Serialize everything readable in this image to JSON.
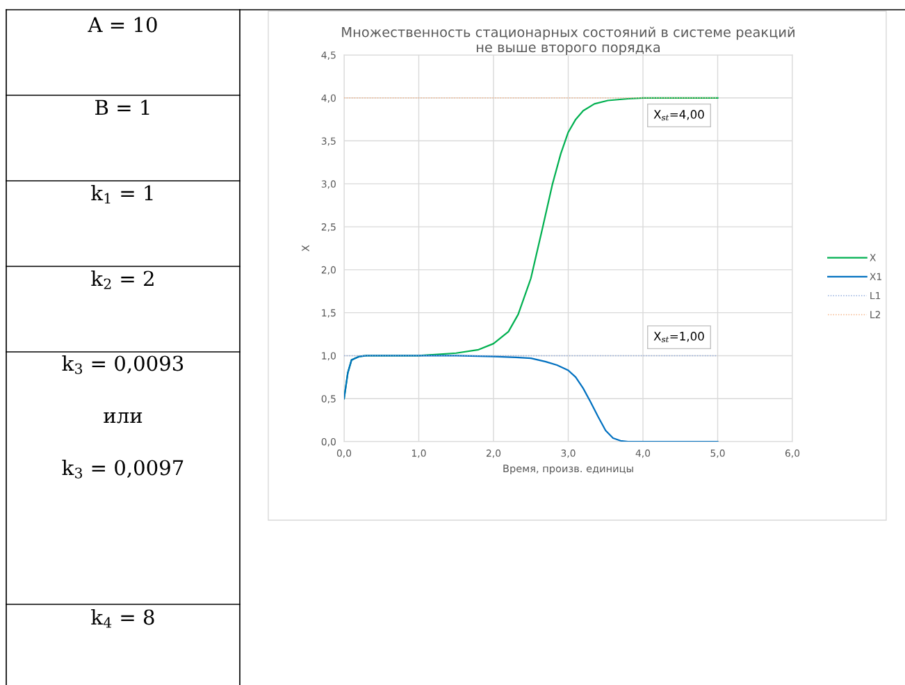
{
  "chart_data": {
    "type": "line",
    "title": "Множественность стационарных состояний в системе реакций\nне выше второго порядка",
    "xlabel": "Время, произв. единицы",
    "ylabel": "X",
    "xlim": [
      0,
      6
    ],
    "xticks": [
      {
        "value": 0,
        "label": "0,0"
      },
      {
        "value": 1,
        "label": "1,0"
      },
      {
        "value": 2,
        "label": "2,0"
      },
      {
        "value": 3,
        "label": "3,0"
      },
      {
        "value": 4,
        "label": "4,0"
      },
      {
        "value": 5,
        "label": "5,0"
      },
      {
        "value": 6,
        "label": "6,0"
      }
    ],
    "ylim": [
      0,
      4.5
    ],
    "yticks": [
      {
        "value": 0,
        "label": "0,0"
      },
      {
        "value": 0.5,
        "label": "0,5"
      },
      {
        "value": 1,
        "label": "1,0"
      },
      {
        "value": 1.5,
        "label": "1,5"
      },
      {
        "value": 2,
        "label": "2,0"
      },
      {
        "value": 2.5,
        "label": "2,5"
      },
      {
        "value": 3,
        "label": "3,0"
      },
      {
        "value": 3.5,
        "label": "3,5"
      },
      {
        "value": 4,
        "label": "4,0"
      },
      {
        "value": 4.5,
        "label": "4,5"
      }
    ],
    "grid": true,
    "legend": "right",
    "marker": "none",
    "series": [
      {
        "name": "X",
        "color": "#00b050",
        "line_style": "solid",
        "x": [
          0,
          0.05,
          0.1,
          0.2,
          0.3,
          0.5,
          1.0,
          1.5,
          1.8,
          2.0,
          2.2,
          2.33,
          2.5,
          2.66,
          2.79,
          2.9,
          3.0,
          3.1,
          3.2,
          3.35,
          3.53,
          3.8,
          4.0,
          4.5,
          5.0
        ],
        "values": [
          0.5,
          0.8,
          0.95,
          0.99,
          1.0,
          1.0,
          1.0,
          1.03,
          1.07,
          1.14,
          1.28,
          1.48,
          1.9,
          2.5,
          3.0,
          3.35,
          3.6,
          3.75,
          3.85,
          3.93,
          3.97,
          3.99,
          4.0,
          4.0,
          4.0
        ]
      },
      {
        "name": "X1",
        "color": "#0070c0",
        "line_style": "solid",
        "x": [
          0,
          0.05,
          0.1,
          0.2,
          0.3,
          0.5,
          1.0,
          1.5,
          2.0,
          2.3,
          2.5,
          2.7,
          2.85,
          3.0,
          3.1,
          3.2,
          3.3,
          3.4,
          3.5,
          3.6,
          3.7,
          3.8,
          4.0,
          4.5,
          5.0
        ],
        "values": [
          0.5,
          0.8,
          0.95,
          0.99,
          1.0,
          1.0,
          1.0,
          1.0,
          0.99,
          0.98,
          0.97,
          0.93,
          0.89,
          0.83,
          0.75,
          0.62,
          0.46,
          0.29,
          0.13,
          0.04,
          0.01,
          0.0,
          0.0,
          0.0,
          0.0
        ]
      },
      {
        "name": "L1",
        "color": "#8faadc",
        "line_style": "dotted",
        "x": [
          0,
          5.0
        ],
        "values": [
          1.0,
          1.0
        ]
      },
      {
        "name": "L2",
        "color": "#f4b183",
        "line_style": "dotted",
        "x": [
          0,
          5.0
        ],
        "values": [
          4.0,
          4.0
        ]
      }
    ],
    "annotations": [
      "X$_{st}$=4,00",
      "X$_{st}$=1,00",
      "A = 10",
      "B = 1",
      "k$_{1}$ = 1",
      "k$_{2}$ = 2",
      "k$_{3}$ = 0,0093",
      "или",
      "k$_{3}$ = 0,0097",
      "k$_{4}$ = 8"
    ]
  }
}
